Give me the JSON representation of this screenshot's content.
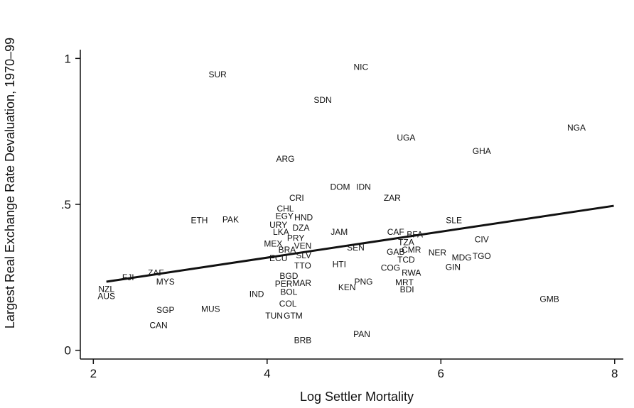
{
  "chart_data": {
    "type": "scatter",
    "xlabel": "Log Settler Mortality",
    "ylabel": "Largest Real Exchange Rate Devaluation, 1970–99",
    "xlim": [
      1.85,
      8.1
    ],
    "ylim": [
      -0.03,
      1.03
    ],
    "x_ticks": [
      2,
      4,
      6,
      8
    ],
    "x_tick_labels": [
      "2",
      "4",
      "6",
      "8"
    ],
    "y_ticks": [
      0,
      0.5,
      1
    ],
    "y_tick_labels": [
      "0",
      ".5",
      "1"
    ],
    "grid": false,
    "legend": "none",
    "fit_line": {
      "x": [
        2.15,
        7.99
      ],
      "y": [
        0.235,
        0.495
      ]
    },
    "points": [
      {
        "label": "NZL",
        "x": 2.15,
        "y": 0.21
      },
      {
        "label": "AUS",
        "x": 2.15,
        "y": 0.185
      },
      {
        "label": "FJI",
        "x": 2.4,
        "y": 0.25
      },
      {
        "label": "ZAF",
        "x": 2.72,
        "y": 0.265
      },
      {
        "label": "MYS",
        "x": 2.83,
        "y": 0.235
      },
      {
        "label": "SGP",
        "x": 2.83,
        "y": 0.138
      },
      {
        "label": "CAN",
        "x": 2.75,
        "y": 0.085
      },
      {
        "label": "MUS",
        "x": 3.35,
        "y": 0.142
      },
      {
        "label": "SUR",
        "x": 3.43,
        "y": 0.945
      },
      {
        "label": "ETH",
        "x": 3.22,
        "y": 0.445
      },
      {
        "label": "PAK",
        "x": 3.58,
        "y": 0.448
      },
      {
        "label": "ARG",
        "x": 4.21,
        "y": 0.655
      },
      {
        "label": "CRI",
        "x": 4.34,
        "y": 0.522
      },
      {
        "label": "CHL",
        "x": 4.21,
        "y": 0.485
      },
      {
        "label": "EGY",
        "x": 4.2,
        "y": 0.46
      },
      {
        "label": "HND",
        "x": 4.42,
        "y": 0.455
      },
      {
        "label": "URY",
        "x": 4.13,
        "y": 0.43
      },
      {
        "label": "DZA",
        "x": 4.39,
        "y": 0.42
      },
      {
        "label": "LKA",
        "x": 4.16,
        "y": 0.405
      },
      {
        "label": "PRY",
        "x": 4.33,
        "y": 0.385
      },
      {
        "label": "MEX",
        "x": 4.07,
        "y": 0.365
      },
      {
        "label": "VEN",
        "x": 4.41,
        "y": 0.358
      },
      {
        "label": "BRA",
        "x": 4.23,
        "y": 0.345
      },
      {
        "label": "SLV",
        "x": 4.42,
        "y": 0.325
      },
      {
        "label": "ECU",
        "x": 4.13,
        "y": 0.315
      },
      {
        "label": "TTO",
        "x": 4.41,
        "y": 0.29
      },
      {
        "label": "BGD",
        "x": 4.25,
        "y": 0.255
      },
      {
        "label": "PER",
        "x": 4.19,
        "y": 0.228
      },
      {
        "label": "MAR",
        "x": 4.4,
        "y": 0.23
      },
      {
        "label": "BOL",
        "x": 4.25,
        "y": 0.2
      },
      {
        "label": "IND",
        "x": 3.88,
        "y": 0.193
      },
      {
        "label": "COL",
        "x": 4.24,
        "y": 0.16
      },
      {
        "label": "TUN",
        "x": 4.08,
        "y": 0.118
      },
      {
        "label": "GTM",
        "x": 4.3,
        "y": 0.118
      },
      {
        "label": "BRB",
        "x": 4.41,
        "y": 0.035
      },
      {
        "label": "SDN",
        "x": 4.64,
        "y": 0.857
      },
      {
        "label": "NIC",
        "x": 5.08,
        "y": 0.97
      },
      {
        "label": "DOM",
        "x": 4.84,
        "y": 0.56
      },
      {
        "label": "IDN",
        "x": 5.11,
        "y": 0.56
      },
      {
        "label": "ZAR",
        "x": 5.44,
        "y": 0.522
      },
      {
        "label": "JAM",
        "x": 4.83,
        "y": 0.405
      },
      {
        "label": "SEN",
        "x": 5.02,
        "y": 0.352
      },
      {
        "label": "HTI",
        "x": 4.83,
        "y": 0.295
      },
      {
        "label": "PNG",
        "x": 5.11,
        "y": 0.235
      },
      {
        "label": "KEN",
        "x": 4.92,
        "y": 0.215
      },
      {
        "label": "PAN",
        "x": 5.09,
        "y": 0.055
      },
      {
        "label": "UGA",
        "x": 5.6,
        "y": 0.728
      },
      {
        "label": "CAF",
        "x": 5.48,
        "y": 0.405
      },
      {
        "label": "BFA",
        "x": 5.7,
        "y": 0.397
      },
      {
        "label": "TZA",
        "x": 5.6,
        "y": 0.37
      },
      {
        "label": "CMR",
        "x": 5.66,
        "y": 0.345
      },
      {
        "label": "GAB",
        "x": 5.48,
        "y": 0.337
      },
      {
        "label": "TCD",
        "x": 5.6,
        "y": 0.31
      },
      {
        "label": "COG",
        "x": 5.42,
        "y": 0.283
      },
      {
        "label": "RWA",
        "x": 5.66,
        "y": 0.265
      },
      {
        "label": "MRT",
        "x": 5.58,
        "y": 0.233
      },
      {
        "label": "BDI",
        "x": 5.61,
        "y": 0.208
      },
      {
        "label": "NER",
        "x": 5.96,
        "y": 0.335
      },
      {
        "label": "SLE",
        "x": 6.15,
        "y": 0.445
      },
      {
        "label": "MDG",
        "x": 6.24,
        "y": 0.318
      },
      {
        "label": "TGO",
        "x": 6.47,
        "y": 0.323
      },
      {
        "label": "GIN",
        "x": 6.14,
        "y": 0.285
      },
      {
        "label": "CIV",
        "x": 6.47,
        "y": 0.38
      },
      {
        "label": "GHA",
        "x": 6.47,
        "y": 0.682
      },
      {
        "label": "NGA",
        "x": 7.56,
        "y": 0.762
      },
      {
        "label": "GMB",
        "x": 7.25,
        "y": 0.175
      }
    ]
  }
}
